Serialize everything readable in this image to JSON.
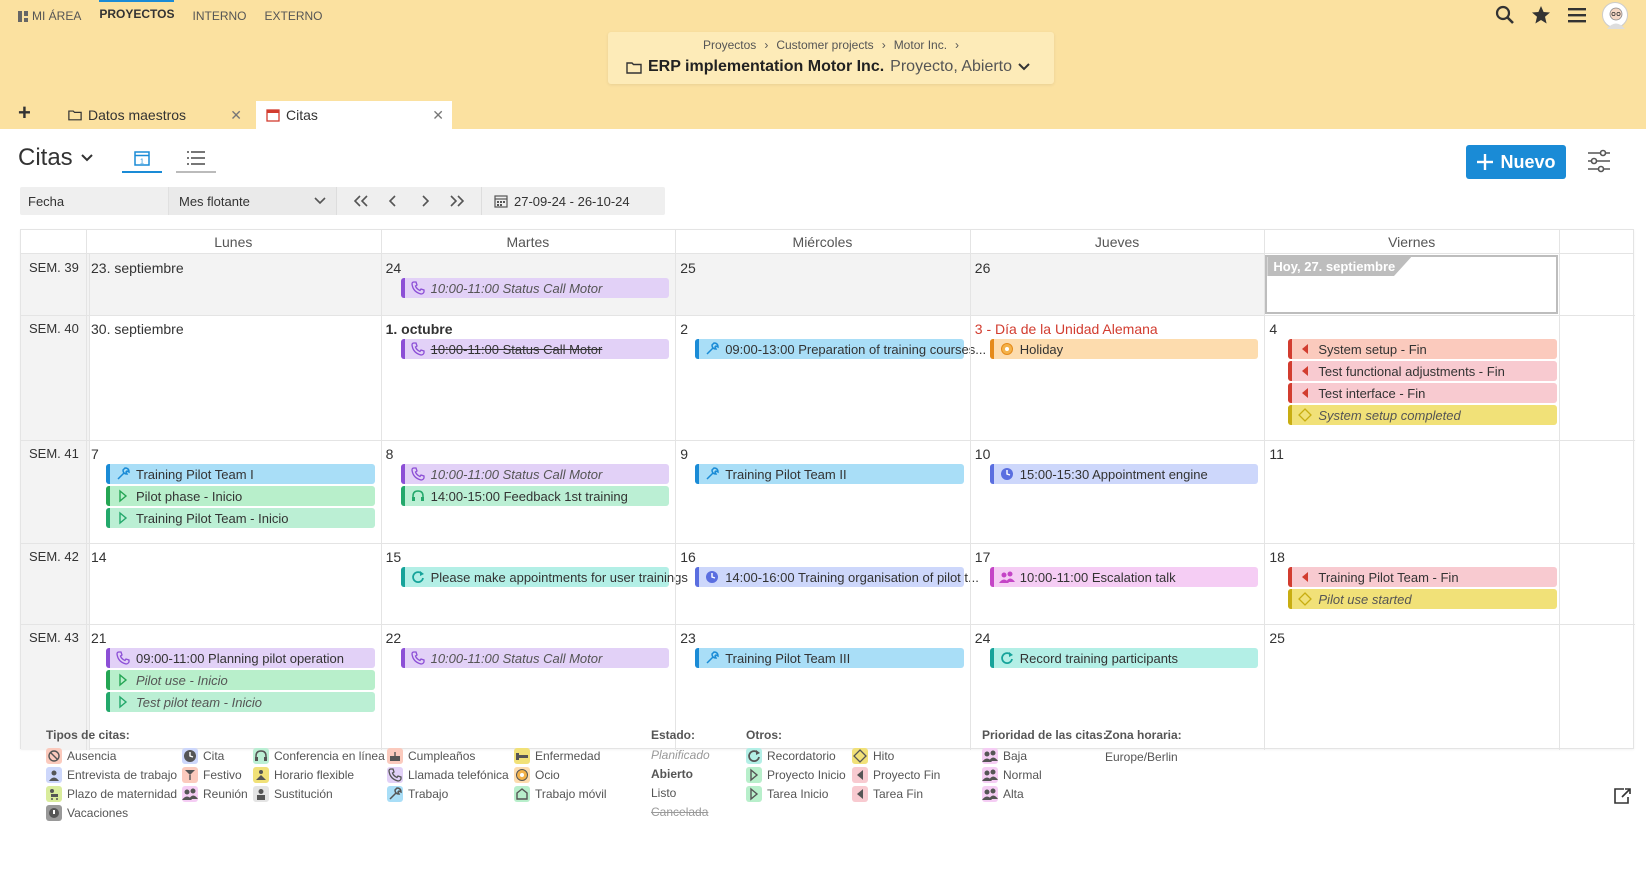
{
  "topnav": {
    "items": [
      {
        "label": "MI ÁREA",
        "active": false
      },
      {
        "label": "PROYECTOS",
        "active": true
      },
      {
        "label": "INTERNO",
        "active": false
      },
      {
        "label": "EXTERNO",
        "active": false
      }
    ],
    "icons": [
      "search-icon",
      "star-icon",
      "menu-icon",
      "avatar"
    ]
  },
  "breadcrumb": {
    "items": [
      "Proyectos",
      "Customer projects",
      "Motor Inc."
    ],
    "separator": "›",
    "project_name": "ERP implementation Motor Inc.",
    "project_state": "Proyecto, Abierto"
  },
  "tabs": [
    {
      "label": "Datos maestros",
      "icon": "folder-icon"
    },
    {
      "label": "Citas",
      "icon": "calendar-icon"
    }
  ],
  "page": {
    "title": "Citas",
    "new_button": "Nuevo"
  },
  "filter": {
    "field": "Fecha",
    "mode": "Mes flotante",
    "range": "27-09-24 - 26-10-24"
  },
  "calendar": {
    "day_names": [
      "Lunes",
      "Martes",
      "Miércoles",
      "Jueves",
      "Viernes"
    ],
    "today_label": "Hoy, 27. septiembre",
    "weeks": [
      {
        "label": "SEM. 39",
        "days": [
          "23. septiembre",
          "24",
          "25",
          "26",
          ""
        ],
        "events": [
          {
            "day": 1,
            "row": 0,
            "text": "10:00-11:00 Status Call Motor",
            "color": "c-purple",
            "icon": "phone-icon",
            "style": "italic"
          }
        ]
      },
      {
        "label": "SEM. 40",
        "days": [
          "30. septiembre",
          "1. octubre",
          "2",
          "3 - Día de la Unidad Alemana",
          "4"
        ],
        "events": [
          {
            "day": 1,
            "row": 0,
            "text": "10:00-11:00 Status Call Motor",
            "color": "c-purple",
            "icon": "phone-icon",
            "style": "strike"
          },
          {
            "day": 2,
            "row": 0,
            "text": "09:00-13:00 Preparation of training courses...",
            "color": "c-blue",
            "icon": "tool-icon",
            "style": ""
          },
          {
            "day": 3,
            "row": 0,
            "text": "Holiday",
            "color": "c-orange",
            "icon": "holiday-icon",
            "style": ""
          },
          {
            "day": 4,
            "row": 0,
            "text": "System setup - Fin",
            "color": "c-salmon",
            "icon": "flag-end-icon",
            "style": ""
          },
          {
            "day": 4,
            "row": 1,
            "text": "Test functional adjustments - Fin",
            "color": "c-pink",
            "icon": "flag-end-icon",
            "style": ""
          },
          {
            "day": 4,
            "row": 2,
            "text": "Test interface - Fin",
            "color": "c-pink",
            "icon": "flag-end-icon",
            "style": ""
          },
          {
            "day": 4,
            "row": 3,
            "text": "System setup completed",
            "color": "c-yellow",
            "icon": "milestone-icon",
            "style": "italic"
          }
        ]
      },
      {
        "label": "SEM. 41",
        "days": [
          "7",
          "8",
          "9",
          "10",
          "11"
        ],
        "events": [
          {
            "day": 0,
            "row": 0,
            "text": "Training Pilot Team I",
            "color": "c-blue",
            "icon": "tool-icon",
            "style": ""
          },
          {
            "day": 0,
            "row": 1,
            "text": "Pilot phase - Inicio",
            "color": "c-green",
            "icon": "flag-start-icon",
            "style": ""
          },
          {
            "day": 0,
            "row": 2,
            "text": "Training Pilot Team - Inicio",
            "color": "c-mint",
            "icon": "flag-start-icon",
            "style": ""
          },
          {
            "day": 1,
            "row": 0,
            "text": "10:00-11:00 Status Call Motor",
            "color": "c-purple",
            "icon": "phone-icon",
            "style": "italic"
          },
          {
            "day": 1,
            "row": 1,
            "text": "14:00-15:00 Feedback 1st training",
            "color": "c-mint",
            "icon": "headset-icon",
            "style": ""
          },
          {
            "day": 2,
            "row": 0,
            "text": "Training Pilot Team II",
            "color": "c-blue",
            "icon": "tool-icon",
            "style": ""
          },
          {
            "day": 3,
            "row": 0,
            "text": "15:00-15:30 Appointment engine",
            "color": "c-lav",
            "icon": "clock-icon",
            "style": ""
          }
        ]
      },
      {
        "label": "SEM. 42",
        "days": [
          "14",
          "15",
          "16",
          "17",
          "18"
        ],
        "events": [
          {
            "day": 1,
            "row": 0,
            "text": "Please make appointments for user trainings",
            "color": "c-teal",
            "icon": "reminder-icon",
            "style": ""
          },
          {
            "day": 2,
            "row": 0,
            "text": "14:00-16:00 Training organisation of pilot t...",
            "color": "c-lav",
            "icon": "clock-icon",
            "style": ""
          },
          {
            "day": 3,
            "row": 0,
            "text": "10:00-11:00 Escalation talk",
            "color": "c-magenta",
            "icon": "meeting-icon",
            "style": ""
          },
          {
            "day": 4,
            "row": 0,
            "text": "Training Pilot Team - Fin",
            "color": "c-pink",
            "icon": "flag-end-icon",
            "style": ""
          },
          {
            "day": 4,
            "row": 1,
            "text": "Pilot use started",
            "color": "c-yellow",
            "icon": "milestone-icon",
            "style": "italic"
          }
        ]
      },
      {
        "label": "SEM. 43",
        "days": [
          "21",
          "22",
          "23",
          "24",
          "25"
        ],
        "events": [
          {
            "day": 0,
            "row": 0,
            "text": "09:00-11:00 Planning pilot operation",
            "color": "c-purple",
            "icon": "phone-icon",
            "style": ""
          },
          {
            "day": 0,
            "row": 1,
            "text": "Pilot use - Inicio",
            "color": "c-green",
            "icon": "flag-start-icon",
            "style": "italic"
          },
          {
            "day": 0,
            "row": 2,
            "text": "Test pilot team - Inicio",
            "color": "c-mint",
            "icon": "flag-start-icon",
            "style": "italic"
          },
          {
            "day": 1,
            "row": 0,
            "text": "10:00-11:00 Status Call Motor",
            "color": "c-purple",
            "icon": "phone-icon",
            "style": "italic"
          },
          {
            "day": 2,
            "row": 0,
            "text": "Training Pilot Team III",
            "color": "c-blue",
            "icon": "tool-icon",
            "style": ""
          },
          {
            "day": 3,
            "row": 0,
            "text": "Record training participants",
            "color": "c-teal",
            "icon": "reminder-icon",
            "style": ""
          }
        ]
      }
    ]
  },
  "legend": {
    "types_title": "Tipos de citas:",
    "types": [
      {
        "label": "Ausencia",
        "icon": "absence-icon",
        "color": "#fbcabd"
      },
      {
        "label": "Entrevista de trabajo",
        "icon": "interview-icon",
        "color": "#cdd7fb"
      },
      {
        "label": "Plazo de maternidad",
        "icon": "maternity-icon",
        "color": "#d9ec9c"
      },
      {
        "label": "Vacaciones",
        "icon": "vacation-icon",
        "color": "#999999"
      },
      {
        "label": "Cita",
        "icon": "clock-icon",
        "color": "#cdd7fb"
      },
      {
        "label": "Festivo",
        "icon": "festive-icon",
        "color": "#fbcabd"
      },
      {
        "label": "Reunión",
        "icon": "meeting-icon",
        "color": "#f5cdf4"
      },
      {
        "label": "Conferencia en línea",
        "icon": "headset-icon",
        "color": "#bbefd4"
      },
      {
        "label": "Horario flexible",
        "icon": "flex-icon",
        "color": "#f1e178"
      },
      {
        "label": "Sustitución",
        "icon": "substitute-icon",
        "color": "#e4e4e4"
      },
      {
        "label": "Cumpleaños",
        "icon": "birthday-icon",
        "color": "#fbcabd"
      },
      {
        "label": "Llamada telefónica",
        "icon": "phone-icon",
        "color": "#e2d1f7"
      },
      {
        "label": "Trabajo",
        "icon": "tool-icon",
        "color": "#a9def7"
      },
      {
        "label": "Enfermedad",
        "icon": "sick-icon",
        "color": "#f1e178"
      },
      {
        "label": "Ocio",
        "icon": "holiday-icon",
        "color": "#fddcae"
      },
      {
        "label": "Trabajo móvil",
        "icon": "mobile-work-icon",
        "color": "#b8efcb"
      }
    ],
    "state_title": "Estado:",
    "states": [
      "Planificado",
      "Abierto",
      "Listo",
      "Cancelada"
    ],
    "other_title": "Otros:",
    "others": [
      {
        "label": "Recordatorio",
        "icon": "reminder-icon",
        "color": "#b3efe6"
      },
      {
        "label": "Proyecto Inicio",
        "icon": "flag-start-icon",
        "color": "#b8efcb"
      },
      {
        "label": "Tarea Inicio",
        "icon": "flag-start-icon",
        "color": "#b8efcb"
      },
      {
        "label": "Hito",
        "icon": "milestone-icon",
        "color": "#f1e178"
      },
      {
        "label": "Proyecto Fin",
        "icon": "flag-end-icon",
        "color": "#f8cad0"
      },
      {
        "label": "Tarea Fin",
        "icon": "flag-end-icon",
        "color": "#f8cad0"
      }
    ],
    "priority_title": "Prioridad de las citas:",
    "priorities": [
      "Baja",
      "Normal",
      "Alta"
    ],
    "tz_title": "Zona horaria:",
    "tz_value": "Europe/Berlin"
  }
}
